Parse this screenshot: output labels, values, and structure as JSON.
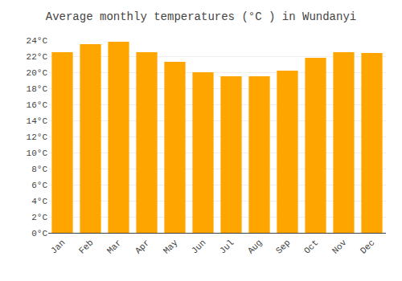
{
  "chart_data": {
    "type": "bar",
    "title": "Average monthly temperatures (°C ) in Wundanyi",
    "categories": [
      "Jan",
      "Feb",
      "Mar",
      "Apr",
      "May",
      "Jun",
      "Jul",
      "Aug",
      "Sep",
      "Oct",
      "Nov",
      "Dec"
    ],
    "values": [
      22.5,
      23.5,
      23.8,
      22.5,
      21.3,
      20.0,
      19.5,
      19.5,
      20.2,
      21.8,
      22.5,
      22.4
    ],
    "color": "#FFA500",
    "ylim": [
      0,
      24
    ],
    "yticks": [
      {
        "value": 0,
        "label": "0°C"
      },
      {
        "value": 2,
        "label": "2°C"
      },
      {
        "value": 4,
        "label": "4°C"
      },
      {
        "value": 6,
        "label": "6°C"
      },
      {
        "value": 8,
        "label": "8°C"
      },
      {
        "value": 10,
        "label": "10°C"
      },
      {
        "value": 12,
        "label": "12°C"
      },
      {
        "value": 14,
        "label": "14°C"
      },
      {
        "value": 16,
        "label": "16°C"
      },
      {
        "value": 18,
        "label": "18°C"
      },
      {
        "value": 20,
        "label": "20°C"
      },
      {
        "value": 22,
        "label": "22°C"
      },
      {
        "value": 24,
        "label": "24°C"
      }
    ],
    "grid": true
  }
}
